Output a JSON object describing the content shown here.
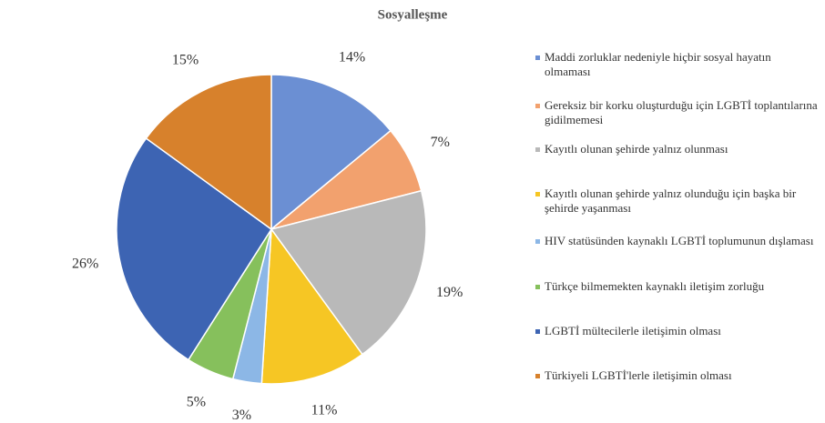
{
  "chart_data": {
    "type": "pie",
    "title": "Sosyalleşme",
    "categories": [
      "Maddi zorluklar nedeniyle hiçbir sosyal hayatın olmaması",
      "Gereksiz bir korku oluşturduğu için LGBTİ toplantılarına gidilmemesi",
      "Kayıtlı olunan şehirde yalnız olunması",
      "Kayıtlı olunan şehirde yalnız olunduğu için başka bir şehirde yaşanması",
      "HIV statüsünden kaynaklı LGBTİ toplumunun dışlaması",
      "Türkçe bilmemekten kaynaklı iletişim zorluğu",
      "LGBTİ mültecilerle iletişimin olması",
      "Türkiyeli LGBTİ'lerle iletişimin olması"
    ],
    "values": [
      14,
      7,
      19,
      11,
      3,
      5,
      26,
      15
    ],
    "value_labels": [
      "14%",
      "7%",
      "19%",
      "11%",
      "3%",
      "5%",
      "26%",
      "15%"
    ],
    "colors": [
      "#6b8fd3",
      "#f2a16e",
      "#b9b9b9",
      "#f6c624",
      "#8cb7e6",
      "#86c05c",
      "#3d64b3",
      "#d7812c"
    ],
    "legend": "right"
  }
}
